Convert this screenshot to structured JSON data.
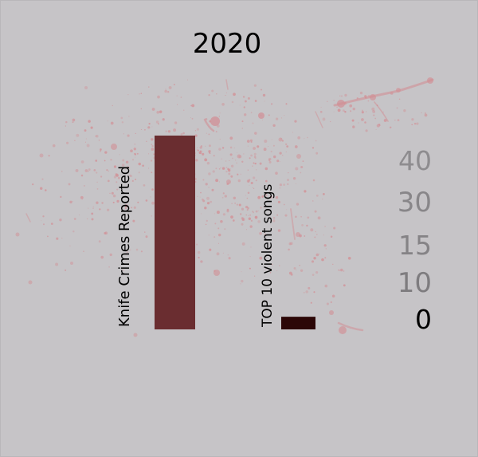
{
  "chart_data": {
    "type": "bar",
    "title": "2020",
    "categories": [
      "Knife Crimes Reported",
      "TOP 10 violent songs"
    ],
    "values": [
      46,
      3
    ],
    "colors": [
      "#6a2d30",
      "#2c0707"
    ],
    "ylim": [
      0,
      46
    ],
    "yticks": [
      {
        "label": "40",
        "color": "#8e8c8f"
      },
      {
        "label": "30",
        "color": "#888689"
      },
      {
        "label": "15",
        "color": "#858386"
      },
      {
        "label": "10",
        "color": "#7e7c7f"
      },
      {
        "label": "0",
        "color": "#000000"
      }
    ],
    "grid": false,
    "legend": "none"
  },
  "background": {
    "color": "#c6c4c7",
    "splatter_color": "#d28f95"
  }
}
